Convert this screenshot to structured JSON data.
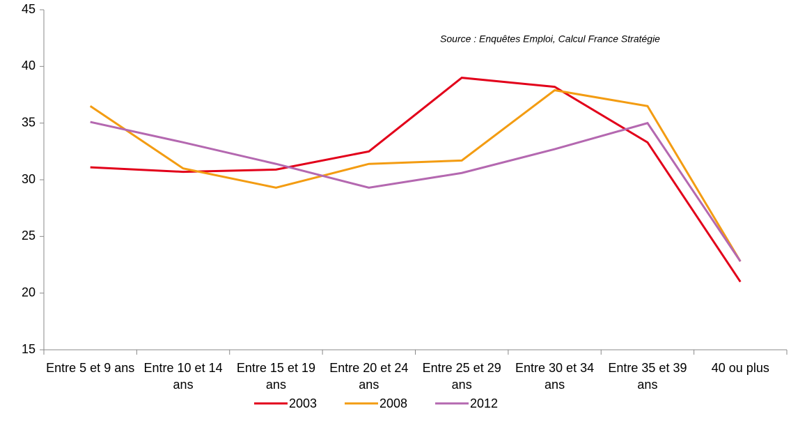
{
  "chart_data": {
    "type": "line",
    "annotation": "Source : Enquêtes Emploi, Calcul France Stratégie",
    "categories": [
      "Entre 5 et 9 ans",
      "Entre 10 et 14 ans",
      "Entre 15 et 19 ans",
      "Entre 20 et 24 ans",
      "Entre 25 et 29 ans",
      "Entre 30 et 34 ans",
      "Entre 35 et 39 ans",
      "40 ou plus"
    ],
    "series": [
      {
        "name": "2003",
        "color": "#e2001a",
        "values": [
          31.1,
          30.7,
          30.9,
          32.5,
          39.0,
          38.2,
          33.3,
          21.0
        ]
      },
      {
        "name": "2008",
        "color": "#f39c12",
        "values": [
          36.5,
          31.0,
          29.3,
          31.4,
          31.7,
          37.9,
          36.5,
          22.8
        ]
      },
      {
        "name": "2012",
        "color": "#b468b0",
        "values": [
          35.1,
          33.3,
          31.4,
          29.3,
          30.6,
          32.7,
          35.0,
          22.8
        ]
      }
    ],
    "ylim": [
      15,
      45
    ],
    "yticks": [
      15,
      20,
      25,
      30,
      35,
      40,
      45
    ]
  }
}
